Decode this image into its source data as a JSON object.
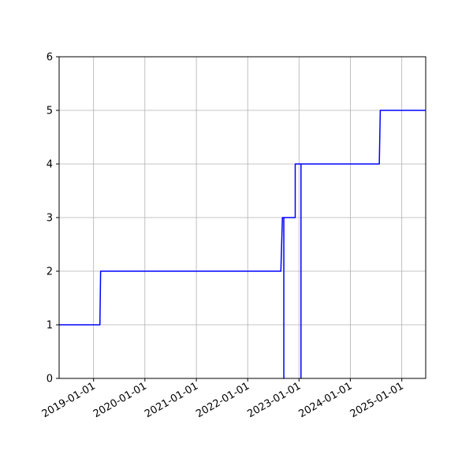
{
  "chart_data": {
    "type": "line",
    "title": "",
    "xlabel": "",
    "ylabel": "",
    "x_range": [
      "2018-05-01",
      "2025-06-20"
    ],
    "ylim": [
      0,
      6
    ],
    "x_tick_labels": [
      "2019-01-01",
      "2020-01-01",
      "2021-01-01",
      "2022-01-01",
      "2023-01-01",
      "2024-01-01",
      "2025-01-01"
    ],
    "y_tick_labels": [
      "0",
      "1",
      "2",
      "3",
      "4",
      "5",
      "6"
    ],
    "grid": true,
    "line_color": "#0000ff",
    "series": [
      {
        "x": [
          "2018-05-01",
          "2019-02-15",
          "2019-02-20",
          "2022-08-25",
          "2022-09-05",
          "2022-09-15",
          "2022-09-15",
          "2022-09-15",
          "2022-12-05",
          "2022-12-05",
          "2023-01-15",
          "2023-01-15",
          "2023-01-15",
          "2024-07-25",
          "2024-08-01",
          "2025-06-20"
        ],
        "y": [
          1,
          1,
          2,
          2,
          3,
          3,
          0,
          3,
          3,
          4,
          4,
          0,
          4,
          4,
          5,
          5
        ]
      }
    ]
  }
}
